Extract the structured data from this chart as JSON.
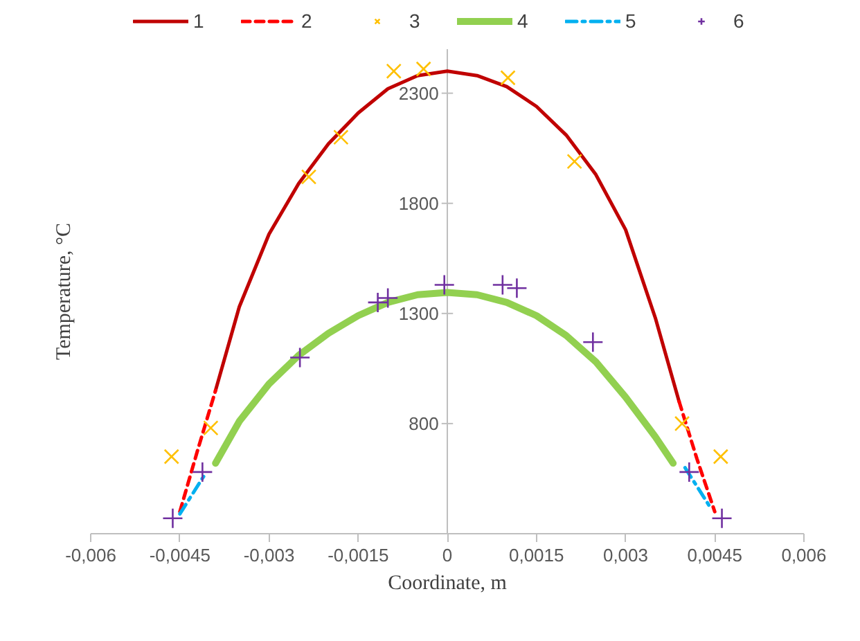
{
  "chart_data": {
    "type": "line",
    "xlabel": "Coordinate, m",
    "ylabel": "Temperature, °C",
    "xlim": [
      -0.006,
      0.006
    ],
    "ylim": [
      300,
      2500
    ],
    "xticks": [
      {
        "value": -0.006,
        "label": "-0,006"
      },
      {
        "value": -0.0045,
        "label": "-0,0045"
      },
      {
        "value": -0.003,
        "label": "-0,003"
      },
      {
        "value": -0.0015,
        "label": "-0,0015"
      },
      {
        "value": 0,
        "label": "0"
      },
      {
        "value": 0.0015,
        "label": "0,0015"
      },
      {
        "value": 0.003,
        "label": "0,003"
      },
      {
        "value": 0.0045,
        "label": "0,0045"
      },
      {
        "value": 0.006,
        "label": "0,006"
      }
    ],
    "yticks": [
      800,
      1300,
      1800,
      2300
    ],
    "grid": false,
    "legend": "top",
    "series": [
      {
        "name": "1",
        "type": "line",
        "color": "#c00000",
        "line_style": "solid",
        "x": [
          -0.0039,
          -0.0035,
          -0.003,
          -0.0025,
          -0.002,
          -0.0015,
          -0.001,
          -0.0005,
          0,
          0.0005,
          0.001,
          0.0015,
          0.002,
          0.0025,
          0.003,
          0.0035,
          0.0039
        ],
        "values": [
          950,
          1330,
          1660,
          1890,
          2070,
          2210,
          2320,
          2380,
          2400,
          2380,
          2330,
          2240,
          2110,
          1930,
          1680,
          1280,
          900
        ]
      },
      {
        "name": "2",
        "type": "line",
        "color": "#ff0000",
        "line_style": "dashed",
        "x": [
          -0.0045,
          -0.0042,
          -0.0039,
          null,
          0.0039,
          0.0042,
          0.0045
        ],
        "values": [
          400,
          680,
          950,
          null,
          900,
          640,
          400
        ]
      },
      {
        "name": "3",
        "type": "scatter",
        "marker": "x",
        "color": "#ffc000",
        "x": [
          -0.00464,
          -0.00398,
          -0.00233,
          -0.00179,
          -0.0009,
          -0.0004,
          0.00102,
          0.00214,
          0.00395,
          0.0046
        ],
        "values": [
          650,
          780,
          1920,
          2100,
          2400,
          2410,
          2370,
          1990,
          800,
          650
        ]
      },
      {
        "name": "4",
        "type": "line",
        "color": "#92d050",
        "line_style": "solid",
        "x": [
          -0.0039,
          -0.0035,
          -0.003,
          -0.0025,
          -0.002,
          -0.0015,
          -0.001,
          -0.0005,
          0,
          0.0005,
          0.001,
          0.0015,
          0.002,
          0.0025,
          0.003,
          0.0035,
          0.0038
        ],
        "values": [
          620,
          810,
          980,
          1110,
          1210,
          1290,
          1350,
          1385,
          1395,
          1385,
          1350,
          1290,
          1200,
          1080,
          920,
          740,
          620
        ]
      },
      {
        "name": "5",
        "type": "line",
        "color": "#00b0f0",
        "line_style": "dashdot",
        "x": [
          -0.0045,
          -0.0041,
          null,
          0.004,
          0.0044
        ],
        "values": [
          390,
          560,
          null,
          600,
          430
        ]
      },
      {
        "name": "6",
        "type": "scatter",
        "marker": "cross",
        "color": "#7030a0",
        "x": [
          -0.00462,
          -0.00412,
          -0.00248,
          -0.00117,
          -0.001,
          -5e-05,
          0.00093,
          0.00117,
          0.00245,
          0.00407,
          0.00462
        ],
        "values": [
          370,
          580,
          1100,
          1350,
          1370,
          1430,
          1430,
          1415,
          1170,
          580,
          370
        ]
      }
    ]
  }
}
